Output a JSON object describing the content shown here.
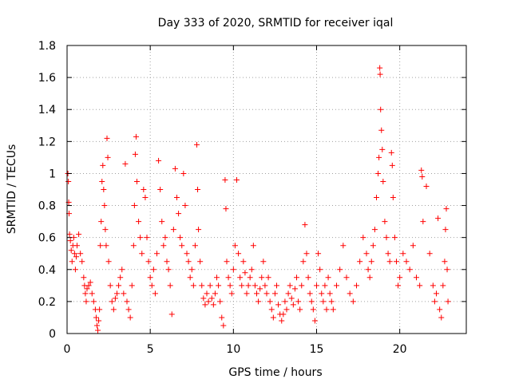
{
  "chart_data": {
    "type": "scatter",
    "title": "Day 333 of 2020, SRMTID for receiver iqal",
    "xlabel": "GPS time / hours",
    "ylabel": "SRMTID / TECUs",
    "xlim": [
      0,
      24
    ],
    "ylim": [
      0,
      1.8
    ],
    "xticks": [
      0,
      5,
      10,
      15,
      20
    ],
    "xtick_labels": [
      "0",
      "5",
      "10",
      "15",
      "20"
    ],
    "yticks": [
      0,
      0.2,
      0.4,
      0.6,
      0.8,
      1.0,
      1.2,
      1.4,
      1.6,
      1.8
    ],
    "ytick_labels": [
      "0",
      "0.2",
      "0.4",
      "0.6",
      "0.8",
      "1",
      "1.2",
      "1.4",
      "1.6",
      "1.8"
    ],
    "grid": true,
    "marker": "+",
    "color": "#ff0000",
    "series": [
      {
        "name": "SRMTID",
        "points": [
          [
            0.05,
            1.0
          ],
          [
            0.08,
            0.95
          ],
          [
            0.1,
            0.82
          ],
          [
            0.12,
            0.75
          ],
          [
            0.15,
            0.62
          ],
          [
            0.2,
            0.58
          ],
          [
            0.25,
            0.52
          ],
          [
            0.3,
            0.45
          ],
          [
            0.35,
            0.55
          ],
          [
            0.4,
            0.6
          ],
          [
            0.45,
            0.5
          ],
          [
            0.5,
            0.4
          ],
          [
            0.55,
            0.48
          ],
          [
            0.6,
            0.55
          ],
          [
            0.7,
            0.62
          ],
          [
            0.8,
            0.5
          ],
          [
            0.9,
            0.45
          ],
          [
            1.0,
            0.35
          ],
          [
            1.05,
            0.3
          ],
          [
            1.1,
            0.25
          ],
          [
            1.15,
            0.2
          ],
          [
            1.2,
            0.28
          ],
          [
            1.3,
            0.3
          ],
          [
            1.4,
            0.32
          ],
          [
            1.5,
            0.25
          ],
          [
            1.6,
            0.2
          ],
          [
            1.7,
            0.15
          ],
          [
            1.75,
            0.1
          ],
          [
            1.8,
            0.05
          ],
          [
            1.85,
            0.02
          ],
          [
            1.9,
            0.08
          ],
          [
            1.95,
            0.15
          ],
          [
            2.0,
            0.55
          ],
          [
            2.05,
            0.7
          ],
          [
            2.1,
            0.95
          ],
          [
            2.15,
            1.05
          ],
          [
            2.2,
            0.9
          ],
          [
            2.25,
            0.8
          ],
          [
            2.3,
            0.65
          ],
          [
            2.35,
            0.55
          ],
          [
            2.4,
            1.22
          ],
          [
            2.45,
            1.1
          ],
          [
            2.5,
            0.45
          ],
          [
            2.6,
            0.3
          ],
          [
            2.7,
            0.2
          ],
          [
            2.8,
            0.15
          ],
          [
            2.9,
            0.22
          ],
          [
            3.0,
            0.25
          ],
          [
            3.1,
            0.3
          ],
          [
            3.2,
            0.35
          ],
          [
            3.3,
            0.4
          ],
          [
            3.4,
            0.25
          ],
          [
            3.5,
            1.06
          ],
          [
            3.6,
            0.2
          ],
          [
            3.7,
            0.15
          ],
          [
            3.8,
            0.1
          ],
          [
            3.9,
            0.3
          ],
          [
            4.0,
            0.55
          ],
          [
            4.05,
            0.8
          ],
          [
            4.1,
            1.12
          ],
          [
            4.15,
            1.23
          ],
          [
            4.2,
            0.95
          ],
          [
            4.3,
            0.7
          ],
          [
            4.4,
            0.6
          ],
          [
            4.5,
            0.5
          ],
          [
            4.6,
            0.9
          ],
          [
            4.7,
            0.85
          ],
          [
            4.8,
            0.6
          ],
          [
            4.9,
            0.45
          ],
          [
            5.0,
            0.35
          ],
          [
            5.1,
            0.3
          ],
          [
            5.2,
            0.4
          ],
          [
            5.3,
            0.25
          ],
          [
            5.4,
            0.5
          ],
          [
            5.5,
            1.08
          ],
          [
            5.6,
            0.9
          ],
          [
            5.7,
            0.7
          ],
          [
            5.8,
            0.55
          ],
          [
            5.9,
            0.6
          ],
          [
            6.0,
            0.45
          ],
          [
            6.1,
            0.4
          ],
          [
            6.2,
            0.3
          ],
          [
            6.3,
            0.12
          ],
          [
            6.4,
            0.65
          ],
          [
            6.5,
            1.03
          ],
          [
            6.6,
            0.85
          ],
          [
            6.7,
            0.75
          ],
          [
            6.8,
            0.6
          ],
          [
            6.9,
            0.55
          ],
          [
            7.0,
            1.0
          ],
          [
            7.1,
            0.8
          ],
          [
            7.2,
            0.5
          ],
          [
            7.3,
            0.45
          ],
          [
            7.4,
            0.35
          ],
          [
            7.5,
            0.4
          ],
          [
            7.6,
            0.3
          ],
          [
            7.7,
            0.55
          ],
          [
            7.8,
            1.18
          ],
          [
            7.85,
            0.9
          ],
          [
            7.9,
            0.65
          ],
          [
            8.0,
            0.45
          ],
          [
            8.1,
            0.3
          ],
          [
            8.2,
            0.22
          ],
          [
            8.3,
            0.18
          ],
          [
            8.4,
            0.25
          ],
          [
            8.5,
            0.2
          ],
          [
            8.6,
            0.3
          ],
          [
            8.7,
            0.22
          ],
          [
            8.8,
            0.18
          ],
          [
            8.9,
            0.25
          ],
          [
            9.0,
            0.35
          ],
          [
            9.1,
            0.3
          ],
          [
            9.2,
            0.2
          ],
          [
            9.3,
            0.1
          ],
          [
            9.4,
            0.05
          ],
          [
            9.5,
            0.96
          ],
          [
            9.55,
            0.78
          ],
          [
            9.6,
            0.45
          ],
          [
            9.7,
            0.35
          ],
          [
            9.8,
            0.3
          ],
          [
            9.9,
            0.25
          ],
          [
            10.0,
            0.4
          ],
          [
            10.1,
            0.55
          ],
          [
            10.2,
            0.96
          ],
          [
            10.3,
            0.5
          ],
          [
            10.4,
            0.35
          ],
          [
            10.5,
            0.3
          ],
          [
            10.6,
            0.45
          ],
          [
            10.7,
            0.38
          ],
          [
            10.8,
            0.25
          ],
          [
            10.9,
            0.3
          ],
          [
            11.0,
            0.35
          ],
          [
            11.1,
            0.4
          ],
          [
            11.2,
            0.55
          ],
          [
            11.3,
            0.3
          ],
          [
            11.4,
            0.25
          ],
          [
            11.5,
            0.2
          ],
          [
            11.6,
            0.28
          ],
          [
            11.7,
            0.35
          ],
          [
            11.8,
            0.45
          ],
          [
            11.9,
            0.3
          ],
          [
            12.0,
            0.25
          ],
          [
            12.1,
            0.35
          ],
          [
            12.2,
            0.2
          ],
          [
            12.3,
            0.15
          ],
          [
            12.4,
            0.1
          ],
          [
            12.5,
            0.25
          ],
          [
            12.6,
            0.3
          ],
          [
            12.7,
            0.18
          ],
          [
            12.8,
            0.12
          ],
          [
            12.9,
            0.08
          ],
          [
            13.0,
            0.12
          ],
          [
            13.1,
            0.2
          ],
          [
            13.2,
            0.15
          ],
          [
            13.3,
            0.25
          ],
          [
            13.4,
            0.3
          ],
          [
            13.5,
            0.22
          ],
          [
            13.6,
            0.18
          ],
          [
            13.7,
            0.28
          ],
          [
            13.8,
            0.35
          ],
          [
            13.9,
            0.2
          ],
          [
            14.0,
            0.15
          ],
          [
            14.1,
            0.3
          ],
          [
            14.2,
            0.45
          ],
          [
            14.3,
            0.68
          ],
          [
            14.4,
            0.5
          ],
          [
            14.5,
            0.35
          ],
          [
            14.6,
            0.25
          ],
          [
            14.7,
            0.2
          ],
          [
            14.8,
            0.15
          ],
          [
            14.9,
            0.08
          ],
          [
            15.0,
            0.3
          ],
          [
            15.1,
            0.5
          ],
          [
            15.2,
            0.4
          ],
          [
            15.3,
            0.25
          ],
          [
            15.4,
            0.2
          ],
          [
            15.5,
            0.3
          ],
          [
            15.6,
            0.15
          ],
          [
            15.7,
            0.35
          ],
          [
            15.8,
            0.25
          ],
          [
            15.9,
            0.2
          ],
          [
            16.0,
            0.15
          ],
          [
            16.2,
            0.3
          ],
          [
            16.4,
            0.4
          ],
          [
            16.6,
            0.55
          ],
          [
            16.8,
            0.35
          ],
          [
            17.0,
            0.25
          ],
          [
            17.2,
            0.2
          ],
          [
            17.4,
            0.3
          ],
          [
            17.6,
            0.45
          ],
          [
            17.8,
            0.6
          ],
          [
            18.0,
            0.5
          ],
          [
            18.1,
            0.4
          ],
          [
            18.2,
            0.35
          ],
          [
            18.3,
            0.45
          ],
          [
            18.4,
            0.55
          ],
          [
            18.5,
            0.65
          ],
          [
            18.6,
            0.85
          ],
          [
            18.7,
            1.0
          ],
          [
            18.75,
            1.1
          ],
          [
            18.8,
            1.66
          ],
          [
            18.82,
            1.62
          ],
          [
            18.85,
            1.4
          ],
          [
            18.9,
            1.27
          ],
          [
            18.95,
            1.15
          ],
          [
            19.0,
            0.95
          ],
          [
            19.1,
            0.7
          ],
          [
            19.2,
            0.6
          ],
          [
            19.3,
            0.5
          ],
          [
            19.4,
            0.45
          ],
          [
            19.5,
            1.13
          ],
          [
            19.55,
            1.05
          ],
          [
            19.6,
            0.85
          ],
          [
            19.7,
            0.6
          ],
          [
            19.8,
            0.45
          ],
          [
            19.9,
            0.3
          ],
          [
            20.0,
            0.35
          ],
          [
            20.2,
            0.5
          ],
          [
            20.4,
            0.45
          ],
          [
            20.6,
            0.4
          ],
          [
            20.8,
            0.55
          ],
          [
            21.0,
            0.35
          ],
          [
            21.2,
            0.3
          ],
          [
            21.3,
            1.02
          ],
          [
            21.35,
            0.98
          ],
          [
            21.4,
            0.7
          ],
          [
            21.6,
            0.92
          ],
          [
            21.8,
            0.5
          ],
          [
            22.0,
            0.3
          ],
          [
            22.1,
            0.2
          ],
          [
            22.2,
            0.25
          ],
          [
            22.3,
            0.72
          ],
          [
            22.4,
            0.15
          ],
          [
            22.5,
            0.1
          ],
          [
            22.6,
            0.3
          ],
          [
            22.7,
            0.45
          ],
          [
            22.75,
            0.65
          ],
          [
            22.8,
            0.78
          ],
          [
            22.85,
            0.4
          ],
          [
            22.9,
            0.2
          ]
        ]
      }
    ]
  }
}
